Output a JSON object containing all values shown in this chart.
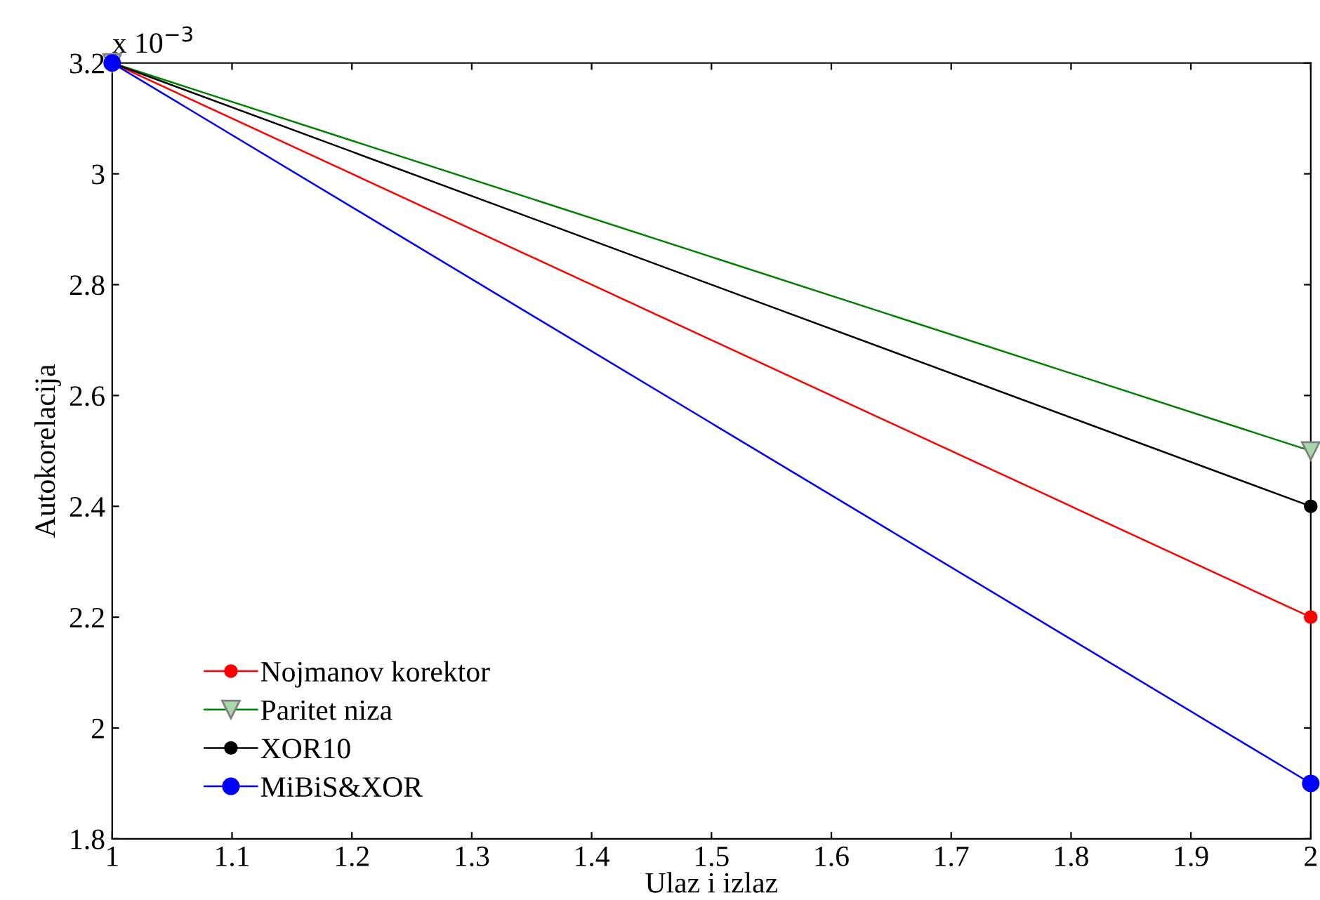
{
  "chart_data": {
    "type": "line",
    "xlabel": "Ulaz i izlaz",
    "ylabel": "Autokorelacija",
    "x": [
      1,
      2
    ],
    "series": [
      {
        "name": "Nojmanov korektor",
        "color": "#ff0000",
        "marker": "circle",
        "values": [
          3.2,
          2.2
        ]
      },
      {
        "name": "Paritet niza",
        "color": "#008000",
        "marker": "triangle",
        "values": [
          3.2,
          2.5
        ]
      },
      {
        "name": "XOR10",
        "color": "#000000",
        "marker": "circle",
        "values": [
          3.2,
          2.4
        ]
      },
      {
        "name": "MiBiS&XOR",
        "color": "#0000ff",
        "marker": "circle",
        "values": [
          3.2,
          1.9
        ]
      }
    ],
    "xlim": [
      1,
      2
    ],
    "xticks": [
      1,
      {
        "value": 1.1,
        "label": "1.1"
      },
      1.2,
      1.3,
      1.4,
      1.5,
      1.6,
      1.7,
      1.8,
      1.9,
      2
    ],
    "ylim": [
      1.8,
      3.2
    ],
    "yticks": [
      1.8,
      2,
      2.2,
      2.4,
      2.6,
      2.8,
      3,
      3.2
    ],
    "annotations": [
      "x 10$^{−3}$"
    ],
    "legend": "bottom left",
    "grid": false
  }
}
